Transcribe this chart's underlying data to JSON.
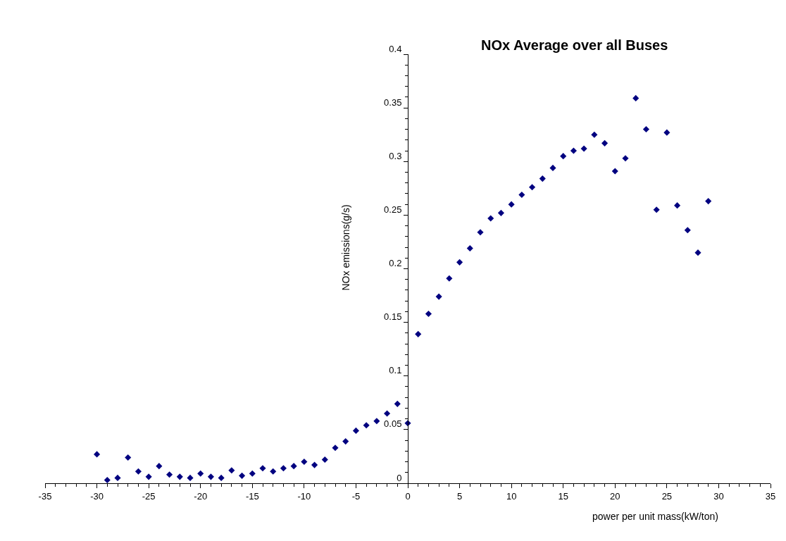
{
  "chart_data": {
    "type": "scatter",
    "title": "NOx Average over all Buses",
    "xlabel": "power per unit mass(kW/ton)",
    "ylabel": "NOx emissions(g/s)",
    "x": [
      -30,
      -29,
      -28,
      -27,
      -26,
      -25,
      -24,
      -23,
      -22,
      -21,
      -20,
      -19,
      -18,
      -17,
      -16,
      -15,
      -14,
      -13,
      -12,
      -11,
      -10,
      -9,
      -8,
      -7,
      -6,
      -5,
      -4,
      -3,
      -2,
      -1,
      0,
      1,
      2,
      3,
      4,
      5,
      6,
      7,
      8,
      9,
      10,
      11,
      12,
      13,
      14,
      15,
      16,
      17,
      18,
      19,
      20,
      21,
      22,
      23,
      24,
      25,
      26,
      27,
      28,
      29
    ],
    "series": [
      {
        "color": "#000080",
        "values": [
          0.027,
          0.003,
          0.005,
          0.024,
          0.011,
          0.006,
          0.016,
          0.008,
          0.006,
          0.005,
          0.009,
          0.006,
          0.005,
          0.012,
          0.007,
          0.009,
          0.014,
          0.011,
          0.014,
          0.016,
          0.02,
          0.017,
          0.022,
          0.033,
          0.039,
          0.049,
          0.054,
          0.058,
          0.065,
          0.074,
          0.056,
          0.139,
          0.158,
          0.174,
          0.191,
          0.206,
          0.219,
          0.234,
          0.247,
          0.252,
          0.26,
          0.269,
          0.276,
          0.284,
          0.294,
          0.305,
          0.31,
          0.312,
          0.325,
          0.317,
          0.291,
          0.303,
          0.359,
          0.33,
          0.255,
          0.327,
          0.259,
          0.236,
          0.215,
          0.263
        ]
      }
    ],
    "xlim": [
      -35,
      35
    ],
    "xticks": [
      -35,
      -30,
      -25,
      -20,
      -15,
      -10,
      -5,
      0,
      5,
      10,
      15,
      20,
      25,
      30,
      35
    ],
    "ylim": [
      0,
      0.4
    ],
    "yticks": [
      0,
      0.05,
      0.1,
      0.15,
      0.2,
      0.25,
      0.3,
      0.35,
      0.4
    ],
    "grid": false,
    "marker": "diamond"
  }
}
